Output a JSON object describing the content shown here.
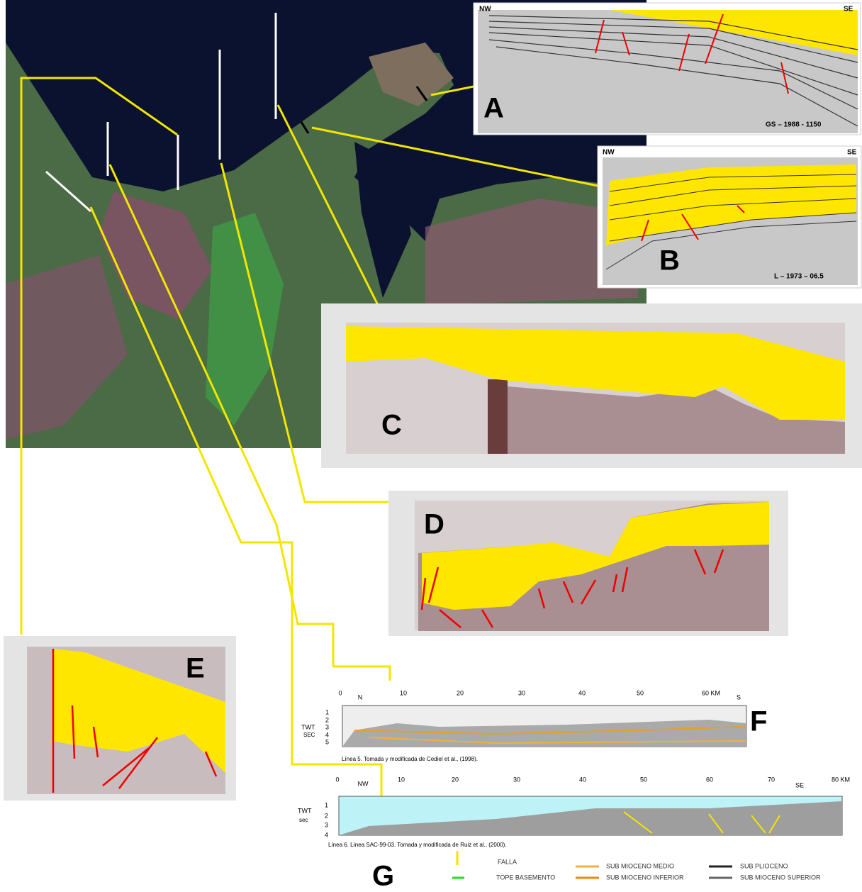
{
  "panels": {
    "A": {
      "letter": "A",
      "left": "NW",
      "right": "SE",
      "code": "GS – 1988 - 1150"
    },
    "B": {
      "letter": "B",
      "left": "NW",
      "right": "SE",
      "code": "L – 1973 – 06.5"
    },
    "C": {
      "letter": "C"
    },
    "D": {
      "letter": "D"
    },
    "E": {
      "letter": "E"
    },
    "F": {
      "letter": "F",
      "left": "N",
      "right": "S",
      "ticks": [
        "0",
        "10",
        "20",
        "30",
        "40",
        "50",
        "60 KM"
      ],
      "axis_title": [
        "TWT",
        "SEC"
      ],
      "depths": [
        "1",
        "2",
        "3",
        "4",
        "5"
      ],
      "caption": "Línea 5. Tomada y modificada de Cediel et al., (1998)."
    },
    "G": {
      "letter": "G",
      "left": "NW",
      "right": "SE",
      "ticks": [
        "0",
        "10",
        "20",
        "30",
        "40",
        "50",
        "60",
        "70",
        "80 KM"
      ],
      "axis_title": [
        "TWT",
        "sec"
      ],
      "depths": [
        "1",
        "2",
        "3",
        "4"
      ],
      "caption": "Línea 6. Línea SAC-99-03. Tomada y modificada de Ruiz et al., (2000)."
    }
  },
  "legend": [
    "FALLA",
    "TOPE BASEMENTO",
    "SUB MIOCENO MEDIO",
    "SUB MIOCENO INFERIOR",
    "SUB PLIOCENO",
    "SUB MIOCENO SUPERIOR"
  ]
}
